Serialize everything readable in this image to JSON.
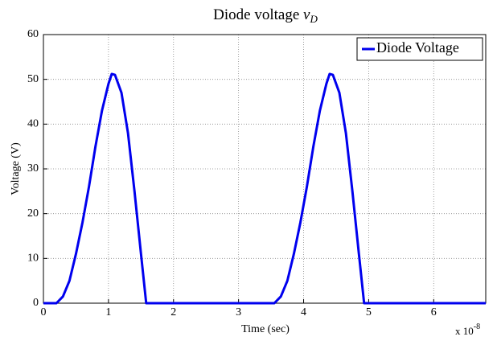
{
  "chart_data": {
    "type": "line",
    "title": "Diode voltage",
    "title_symbol": "v",
    "title_subscript": "D",
    "xlabel": "Time (sec)",
    "ylabel": "Voltage (V)",
    "x_multiplier": "x 10",
    "x_multiplier_exponent": "-8",
    "x": [
      0,
      0.2,
      0.3,
      0.4,
      0.5,
      0.6,
      0.7,
      0.8,
      0.9,
      1.0,
      1.05,
      1.1,
      1.2,
      1.3,
      1.4,
      1.5,
      1.58,
      3.55,
      3.65,
      3.75,
      3.85,
      3.95,
      4.05,
      4.15,
      4.25,
      4.35,
      4.4,
      4.45,
      4.55,
      4.65,
      4.75,
      4.85,
      4.93,
      6.8
    ],
    "series": [
      {
        "name": "Diode Voltage",
        "color": "#0000ee",
        "values": [
          0,
          0,
          1.5,
          5,
          11,
          18,
          26,
          35,
          43,
          49,
          51.2,
          51,
          47,
          38,
          25,
          11,
          0,
          0,
          1.5,
          5,
          11,
          18,
          26,
          35,
          43,
          49,
          51.2,
          51,
          47,
          38,
          25,
          11,
          0,
          0
        ]
      }
    ],
    "xlim": [
      0,
      6.8
    ],
    "xticks": [
      0,
      1,
      2,
      3,
      4,
      5,
      6
    ],
    "ylim": [
      0,
      60
    ],
    "yticks": [
      0,
      10,
      20,
      30,
      40,
      50,
      60
    ],
    "grid": true,
    "legend": "upper right"
  }
}
